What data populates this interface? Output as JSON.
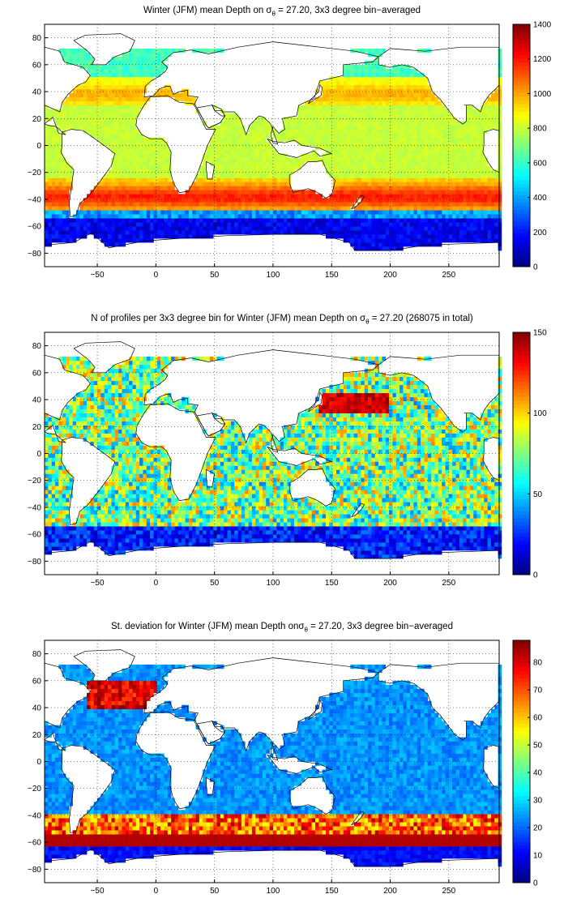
{
  "chart_data": [
    {
      "type": "heatmap",
      "title_prefix": "Winter (JFM) mean Depth on σ",
      "title_subscript": "θ",
      "title_suffix": " = 27.20, 3x3 degree bin−averaged",
      "x_ticks": [
        "−50",
        "0",
        "50",
        "100",
        "150",
        "200",
        "250"
      ],
      "y_ticks": [
        "80",
        "60",
        "40",
        "20",
        "0",
        "−20",
        "−40",
        "−60",
        "−80"
      ],
      "xlim": [
        -95,
        293
      ],
      "ylim": [
        -90,
        90
      ],
      "grid": true,
      "colorbar": {
        "min": 0,
        "max": 1400,
        "ticks": [
          "1400",
          "1200",
          "1000",
          "800",
          "600",
          "400",
          "200",
          "0"
        ],
        "colormap": "jet"
      },
      "pattern": "depth"
    },
    {
      "type": "heatmap",
      "title_prefix": "N of profiles per 3x3 degree bin for Winter (JFM) mean Depth on σ",
      "title_subscript": "θ",
      "title_suffix": " = 27.20 (268075 in total)",
      "x_ticks": [
        "−50",
        "0",
        "50",
        "100",
        "150",
        "200",
        "250"
      ],
      "y_ticks": [
        "80",
        "60",
        "40",
        "20",
        "0",
        "−20",
        "−40",
        "−60",
        "−80"
      ],
      "xlim": [
        -95,
        293
      ],
      "ylim": [
        -90,
        90
      ],
      "grid": true,
      "colorbar": {
        "min": 0,
        "max": 150,
        "ticks": [
          "150",
          "100",
          "50",
          "0"
        ],
        "colormap": "jet"
      },
      "pattern": "count"
    },
    {
      "type": "heatmap",
      "title_prefix": "St. deviation for Winter (JFM) mean Depth onσ",
      "title_subscript": "θ",
      "title_suffix": " = 27.20, 3x3 degree bin−averaged",
      "x_ticks": [
        "−50",
        "0",
        "50",
        "100",
        "150",
        "200",
        "250"
      ],
      "y_ticks": [
        "80",
        "60",
        "40",
        "20",
        "0",
        "−20",
        "−40",
        "−60",
        "−80"
      ],
      "xlim": [
        -95,
        293
      ],
      "ylim": [
        -90,
        90
      ],
      "grid": true,
      "colorbar": {
        "min": 0,
        "max": 88,
        "ticks": [
          "80",
          "70",
          "60",
          "50",
          "40",
          "30",
          "20",
          "10",
          "0"
        ],
        "colormap": "jet"
      },
      "pattern": "stdev"
    }
  ]
}
